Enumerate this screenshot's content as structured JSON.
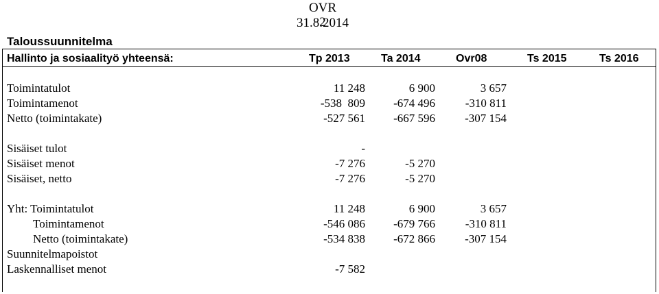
{
  "document": {
    "header_line1": "OVR 31.8.2014",
    "header_line2": "2",
    "title": "Taloussuunnitelma",
    "summary_label": "Hallinto ja sosiaalityö yhteensä:",
    "columns": [
      "Tp 2013",
      "Ta 2014",
      "Ovr08",
      "Ts 2015",
      "Ts 2016"
    ]
  },
  "rows": [
    {
      "label": "Toimintatulot",
      "tp2013": "11 248",
      "ta2014": "6 900",
      "ovr08": "3 657"
    },
    {
      "label": "Toimintamenot",
      "tp2013": "-538  809",
      "ta2014": "-674 496",
      "ovr08": "-310 811"
    },
    {
      "label": "Netto (toimintakate)",
      "tp2013": "-527 561",
      "ta2014": "-667 596",
      "ovr08": "-307 154"
    },
    {
      "label": "Sisäiset tulot",
      "tp2013": "-",
      "ta2014": "",
      "ovr08": ""
    },
    {
      "label": "Sisäiset menot",
      "tp2013": "-7 276",
      "ta2014": "-5 270",
      "ovr08": ""
    },
    {
      "label": "Sisäiset, netto",
      "tp2013": "-7 276",
      "ta2014": "-5 270",
      "ovr08": ""
    },
    {
      "label": "Yht: Toimintatulot",
      "tp2013": "11 248",
      "ta2014": "6 900",
      "ovr08": "3 657"
    },
    {
      "label": "Toimintamenot",
      "tp2013": "-546 086",
      "ta2014": "-679 766",
      "ovr08": "-310 811"
    },
    {
      "label": "Netto (toimintakate)",
      "tp2013": "-534 838",
      "ta2014": "-672 866",
      "ovr08": "-307 154"
    },
    {
      "label": "Suunnitelmapoistot",
      "tp2013": "",
      "ta2014": "",
      "ovr08": ""
    },
    {
      "label": "Laskennalliset menot",
      "tp2013": "-7 582",
      "ta2014": "",
      "ovr08": ""
    }
  ]
}
